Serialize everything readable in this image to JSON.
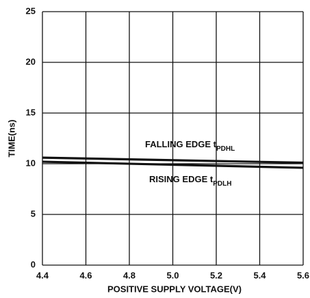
{
  "chart_data": {
    "type": "line",
    "x_label": "POSITIVE SUPPLY VOLTAGE(V)",
    "y_label": "TIME(ns)",
    "x": [
      4.4,
      5.6
    ],
    "series": [
      {
        "name": "FALLING EDGE t",
        "name_subscript": "PDHL",
        "color": "#111111",
        "values": [
          10.6,
          10.1
        ]
      },
      {
        "name": "RISING EDGE t",
        "name_subscript": "PDLH",
        "color": "#111111",
        "values": [
          10.2,
          9.6
        ]
      }
    ],
    "xlim": [
      4.4,
      5.6
    ],
    "xticks": [
      4.4,
      4.6,
      4.8,
      {
        "value": 5,
        "label": "5.0"
      },
      5.2,
      5.4,
      5.6
    ],
    "ylim": [
      0,
      25
    ],
    "yticks": [
      0,
      5,
      10,
      15,
      20,
      25
    ],
    "grid": true
  }
}
